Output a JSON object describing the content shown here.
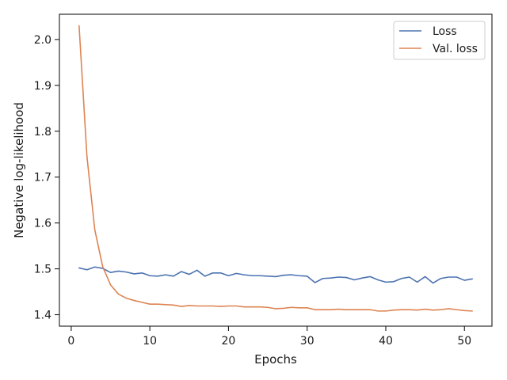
{
  "chart_data": {
    "type": "line",
    "title": "",
    "xlabel": "Epochs",
    "ylabel": "Negative log-likelihood",
    "xlim": [
      -1.5,
      53.5
    ],
    "ylim": [
      1.375,
      2.055
    ],
    "xticks": [
      0,
      10,
      20,
      30,
      40,
      50
    ],
    "yticks": [
      1.4,
      1.5,
      1.6,
      1.7,
      1.8,
      1.9,
      2.0
    ],
    "ytick_labels": [
      "1.4",
      "1.5",
      "1.6",
      "1.7",
      "1.8",
      "1.9",
      "2.0"
    ],
    "grid": false,
    "legend_position": "top-right",
    "x": [
      1,
      2,
      3,
      4,
      5,
      6,
      7,
      8,
      9,
      10,
      11,
      12,
      13,
      14,
      15,
      16,
      17,
      18,
      19,
      20,
      21,
      22,
      23,
      24,
      25,
      26,
      27,
      28,
      29,
      30,
      31,
      32,
      33,
      34,
      35,
      36,
      37,
      38,
      39,
      40,
      41,
      42,
      43,
      44,
      45,
      46,
      47,
      48,
      49,
      50,
      51
    ],
    "series": [
      {
        "name": "Loss",
        "color": "#4c72b0",
        "values": [
          1.502,
          1.498,
          1.504,
          1.501,
          1.492,
          1.495,
          1.493,
          1.489,
          1.491,
          1.485,
          1.484,
          1.487,
          1.484,
          1.494,
          1.488,
          1.497,
          1.484,
          1.491,
          1.491,
          1.485,
          1.49,
          1.487,
          1.485,
          1.485,
          1.484,
          1.483,
          1.486,
          1.487,
          1.485,
          1.484,
          1.47,
          1.479,
          1.48,
          1.482,
          1.481,
          1.476,
          1.48,
          1.483,
          1.476,
          1.471,
          1.472,
          1.479,
          1.482,
          1.471,
          1.483,
          1.469,
          1.479,
          1.482,
          1.482,
          1.475,
          1.478
        ]
      },
      {
        "name": "Val. loss",
        "color": "#dd8452",
        "values": [
          2.03,
          1.745,
          1.585,
          1.505,
          1.465,
          1.445,
          1.436,
          1.431,
          1.427,
          1.423,
          1.423,
          1.422,
          1.421,
          1.418,
          1.42,
          1.419,
          1.419,
          1.419,
          1.418,
          1.419,
          1.419,
          1.417,
          1.417,
          1.417,
          1.416,
          1.413,
          1.414,
          1.416,
          1.415,
          1.415,
          1.411,
          1.411,
          1.411,
          1.412,
          1.411,
          1.411,
          1.411,
          1.411,
          1.408,
          1.408,
          1.41,
          1.411,
          1.411,
          1.41,
          1.412,
          1.41,
          1.411,
          1.413,
          1.411,
          1.409,
          1.408
        ]
      }
    ]
  }
}
